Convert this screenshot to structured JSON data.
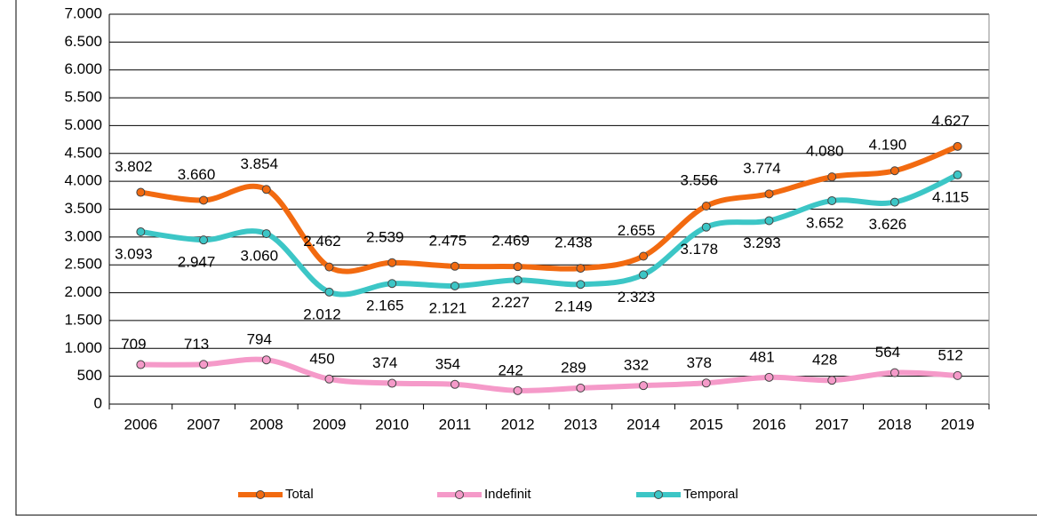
{
  "chart_data": {
    "type": "line",
    "categories": [
      "2006",
      "2007",
      "2008",
      "2009",
      "2010",
      "2011",
      "2012",
      "2013",
      "2014",
      "2015",
      "2016",
      "2017",
      "2018",
      "2019"
    ],
    "series": [
      {
        "name": "Total",
        "color": "#f26a10",
        "values": [
          3802,
          3660,
          3854,
          2462,
          2539,
          2475,
          2469,
          2438,
          2655,
          3556,
          3774,
          4080,
          4190,
          4627
        ],
        "value_labels": [
          "3.802",
          "3.660",
          "3.854",
          "2.462",
          "2.539",
          "2.475",
          "2.469",
          "2.438",
          "2.655",
          "3.556",
          "3.774",
          "4.080",
          "4.190",
          "4.627"
        ]
      },
      {
        "name": "Indefinit",
        "color": "#f59ac9",
        "values": [
          709,
          713,
          794,
          450,
          374,
          354,
          242,
          289,
          332,
          378,
          481,
          428,
          564,
          512
        ]
      },
      {
        "name": "Temporal",
        "color": "#3cc6c6",
        "values": [
          3093,
          2947,
          3060,
          2012,
          2165,
          2121,
          2227,
          2149,
          2323,
          3178,
          3293,
          3652,
          3626,
          4115
        ],
        "value_labels": [
          "3.093",
          "2.947",
          "3.060",
          "2.012",
          "2.165",
          "2.121",
          "2.227",
          "2.149",
          "2.323",
          "3.178",
          "3.293",
          "3.652",
          "3.626",
          "4.115"
        ]
      }
    ],
    "ylim": [
      0,
      7000
    ],
    "yticks": [
      0,
      500,
      {
        "value": 1000,
        "label": "1.000"
      },
      {
        "value": 1500,
        "label": "1.500"
      },
      {
        "value": 2000,
        "label": "2.000"
      },
      {
        "value": 2500,
        "label": "2.500"
      },
      {
        "value": 3000,
        "label": "3.000"
      },
      {
        "value": 3500,
        "label": "3.500"
      },
      {
        "value": 4000,
        "label": "4.000"
      },
      {
        "value": 4500,
        "label": "4.500"
      },
      {
        "value": 5000,
        "label": "5.000"
      },
      {
        "value": 5500,
        "label": "5.500"
      },
      {
        "value": 6000,
        "label": "6.000"
      },
      {
        "value": 6500,
        "label": "6.500"
      },
      {
        "value": 7000,
        "label": "7.000"
      }
    ],
    "grid": true,
    "legend": "bottom"
  }
}
